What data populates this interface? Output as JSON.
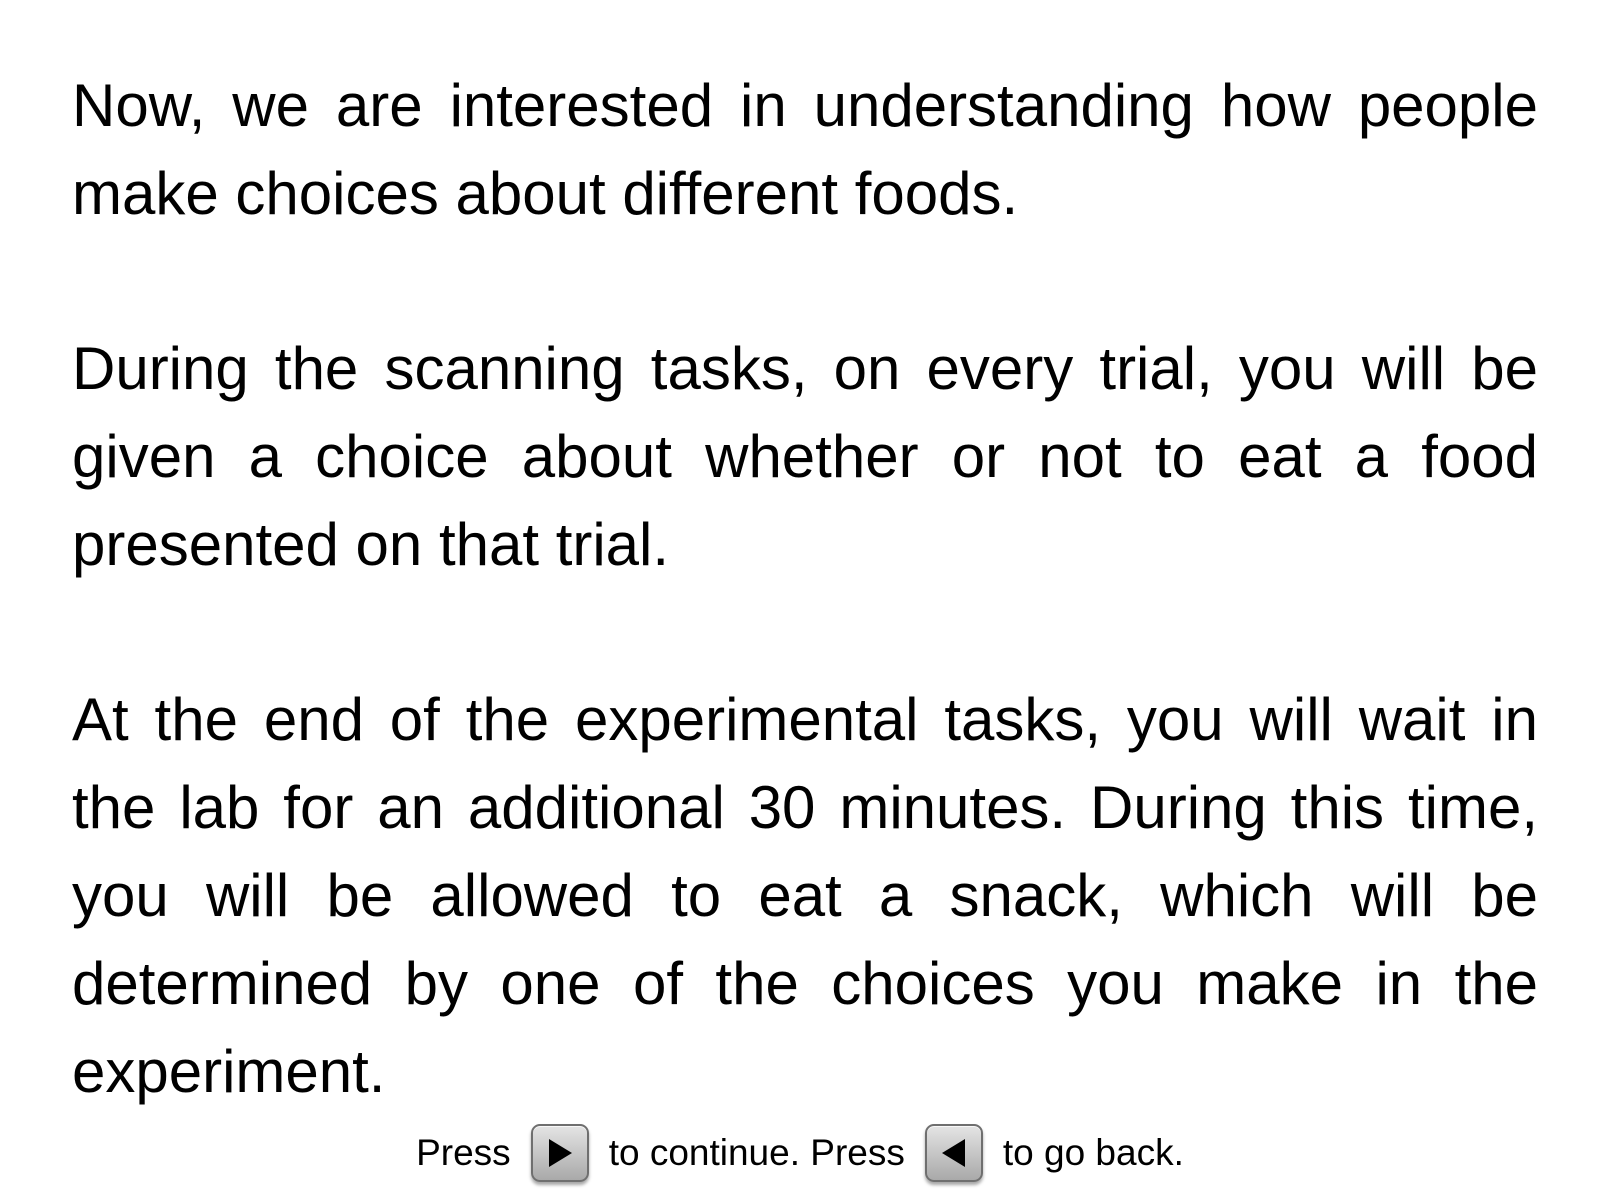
{
  "instructions": {
    "paragraphs": [
      "Now, we are interested in understanding how people make choices about different foods.",
      "During the scanning tasks, on every trial, you will be given a choice about whether or not to eat a food presented on that trial.",
      "At the end of the experimental tasks, you will wait in the lab for an additional 30 minutes. During this time, you will be allowed to eat a snack, which will be determined by one of the choices you make in the experiment."
    ]
  },
  "navigation": {
    "press_label": "Press",
    "continue_label": "to continue. Press",
    "back_label": "to go back.",
    "forward_icon": "right-triangle-icon",
    "back_icon": "left-triangle-icon"
  }
}
